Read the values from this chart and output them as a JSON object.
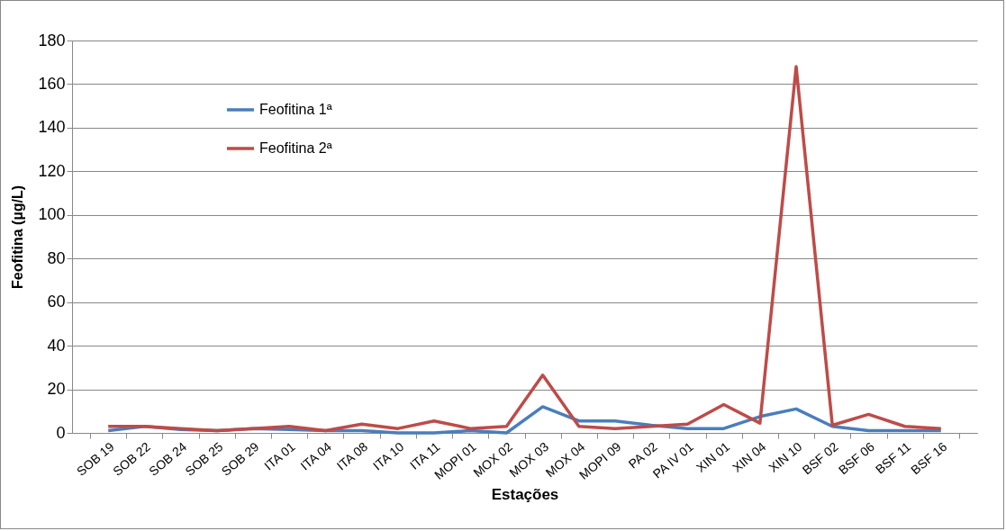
{
  "chart_data": {
    "type": "line",
    "xlabel": "Estações",
    "ylabel": "Feofitina (µg/L)",
    "categories": [
      "SOB 19",
      "SOB 22",
      "SOB 24",
      "SOB 25",
      "SOB 29",
      "ITA 01",
      "ITA 04",
      "ITA 08",
      "ITA 10",
      "ITA 11",
      "MOPI 01",
      "MOX 02",
      "MOX 03",
      "MOX 04",
      "MOPI 09",
      "PA 02",
      "PA IV 01",
      "XIN 01",
      "XIN 04",
      "XIN 10",
      "BSF 02",
      "BSF 06",
      "BSF 11",
      "BSF 16"
    ],
    "series": [
      {
        "name": "Feofitina 1ª",
        "color": "#4a7ebb",
        "values": [
          1,
          3,
          1.5,
          1,
          2,
          1.5,
          1,
          1,
          0,
          0,
          1,
          0,
          12,
          5.5,
          5.5,
          3.5,
          2,
          2,
          7.5,
          11,
          3,
          1,
          1,
          1
        ]
      },
      {
        "name": "Feofitina 2ª",
        "color": "#be4b48",
        "values": [
          3,
          3,
          2,
          1,
          2,
          3,
          1,
          4,
          2,
          5.5,
          2,
          3,
          26.5,
          3,
          2,
          3,
          4,
          13,
          4.5,
          168,
          3.5,
          8.5,
          3,
          2
        ]
      }
    ],
    "ylim": [
      0,
      180
    ],
    "yticks": [
      0,
      20,
      40,
      60,
      80,
      100,
      120,
      140,
      160,
      180
    ],
    "grid": "y",
    "legend": "top left",
    "marker": "none",
    "line_style": "solid"
  }
}
